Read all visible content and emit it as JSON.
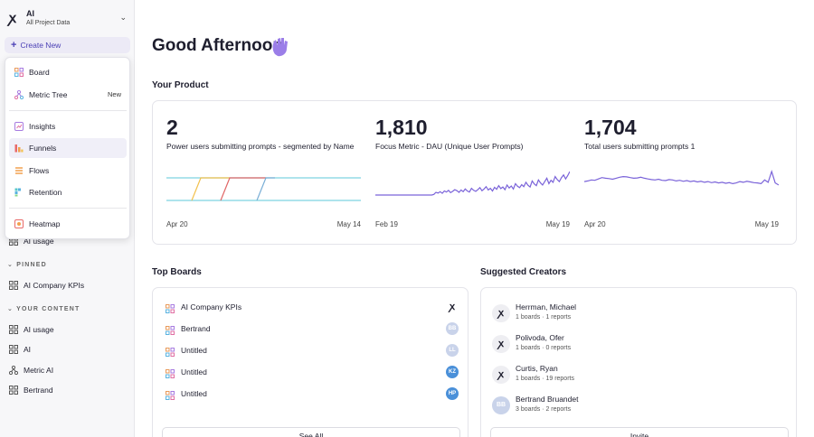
{
  "project": {
    "name": "AI",
    "subtitle": "All Project Data",
    "chevron_icon": "chevron-down-icon"
  },
  "create_new": {
    "label": "Create New"
  },
  "dropdown": {
    "items": [
      {
        "label": "Board",
        "icon": "board-icon"
      },
      {
        "label": "Metric Tree",
        "icon": "metric-tree-icon",
        "badge": "New"
      },
      {
        "label": "Insights",
        "icon": "insights-icon"
      },
      {
        "label": "Funnels",
        "icon": "funnels-icon",
        "active": true
      },
      {
        "label": "Flows",
        "icon": "flows-icon"
      },
      {
        "label": "Retention",
        "icon": "retention-icon"
      },
      {
        "label": "Heatmap",
        "icon": "heatmap-icon"
      }
    ]
  },
  "sidebar": {
    "ai_usage_top": "AI usage",
    "pinned_label": "PINNED",
    "pinned": [
      {
        "label": "AI Company KPIs"
      }
    ],
    "your_content_label": "YOUR CONTENT",
    "content": [
      {
        "label": "AI usage",
        "icon": "board-icon"
      },
      {
        "label": "AI",
        "icon": "board-icon"
      },
      {
        "label": "Metric AI",
        "icon": "metric-tree-icon"
      },
      {
        "label": "Bertrand",
        "icon": "board-icon"
      }
    ]
  },
  "greeting": "Good Afternoon",
  "your_product": {
    "title": "Your Product",
    "metrics": [
      {
        "value": "2",
        "label": "Power users submitting prompts - segmented by Name",
        "start": "Apr 20",
        "end": "May 14"
      },
      {
        "value": "1,810",
        "label": "Focus Metric - DAU (Unique User Prompts)",
        "start": "Feb 19",
        "end": "May 19"
      },
      {
        "value": "1,704",
        "label": "Total users submitting prompts 1",
        "start": "Apr 20",
        "end": "May 19"
      }
    ]
  },
  "chart_data": [
    {
      "type": "line",
      "title": "Power users submitting prompts - segmented by Name",
      "series": [
        {
          "values": [
            0,
            0,
            0,
            0,
            0,
            0,
            0,
            0,
            0,
            0,
            0,
            0,
            0,
            0,
            0,
            0,
            0,
            0,
            0,
            0,
            0,
            0,
            0,
            0,
            0
          ]
        }
      ],
      "x_start": "Apr 20",
      "x_end": "May 14",
      "colors": [
        "#7dd3e0",
        "#f2c14e",
        "#e06666",
        "#7aaed6"
      ]
    },
    {
      "type": "line",
      "title": "Focus Metric - DAU (Unique User Prompts)",
      "series": [
        {
          "values": [
            0,
            0,
            0,
            0,
            0,
            0,
            0,
            0,
            0,
            0,
            0,
            0,
            0,
            0,
            0,
            0,
            0,
            0,
            0,
            0,
            0,
            0,
            0,
            0,
            0,
            0,
            0,
            0,
            2,
            8,
            6,
            10,
            5,
            12,
            9,
            14,
            7,
            11,
            16,
            13,
            8,
            15,
            10,
            18,
            12,
            9,
            20,
            14,
            11,
            16,
            22,
            13,
            18,
            25,
            15,
            20,
            12,
            23,
            17,
            28,
            19,
            24,
            16,
            30,
            21,
            27,
            18,
            34,
            26,
            22,
            31,
            25,
            38,
            29,
            24,
            42,
            33,
            28,
            45,
            36,
            30,
            40,
            50,
            34,
            44,
            38,
            55,
            46,
            40,
            52,
            60,
            48,
            58,
            70
          ]
        }
      ],
      "x_start": "Feb 19",
      "x_end": "May 19",
      "colors": [
        "#7a63d9"
      ]
    },
    {
      "type": "line",
      "title": "Total users submitting prompts 1",
      "series": [
        {
          "values": [
            40,
            42,
            45,
            44,
            48,
            52,
            50,
            49,
            47,
            50,
            53,
            55,
            54,
            52,
            50,
            51,
            53,
            50,
            48,
            46,
            45,
            47,
            44,
            43,
            46,
            45,
            42,
            44,
            41,
            43,
            40,
            42,
            39,
            41,
            38,
            40,
            37,
            39,
            36,
            38,
            35,
            37,
            34,
            36,
            40,
            38,
            41,
            39,
            37,
            36,
            34,
            45,
            38,
            70,
            36,
            30
          ]
        }
      ],
      "x_start": "Apr 20",
      "x_end": "May 19",
      "colors": [
        "#7a63d9"
      ]
    }
  ],
  "top_boards": {
    "title": "Top Boards",
    "rows": [
      {
        "name": "AI Company KPIs",
        "avatar": "",
        "avatar_color": ""
      },
      {
        "name": "Bertrand",
        "avatar": "BB",
        "avatar_color": "#c9d3ea"
      },
      {
        "name": "Untitled",
        "avatar": "LL",
        "avatar_color": "#c9d3ea"
      },
      {
        "name": "Untitled",
        "avatar": "KZ",
        "avatar_color": "#4a90d9"
      },
      {
        "name": "Untitled",
        "avatar": "HP",
        "avatar_color": "#4a90d9"
      }
    ],
    "see_all": "See All"
  },
  "suggested_creators": {
    "title": "Suggested Creators",
    "people": [
      {
        "name": "Herrman, Michael",
        "stats": "1 boards · 1 reports",
        "avatar": ""
      },
      {
        "name": "Polivoda, Ofer",
        "stats": "1 boards · 0 reports",
        "avatar": ""
      },
      {
        "name": "Curtis, Ryan",
        "stats": "1 boards · 19 reports",
        "avatar": ""
      },
      {
        "name": "Bertrand Bruandet",
        "stats": "3 boards · 2 reports",
        "avatar": "BB"
      }
    ],
    "invite": "Invite"
  }
}
